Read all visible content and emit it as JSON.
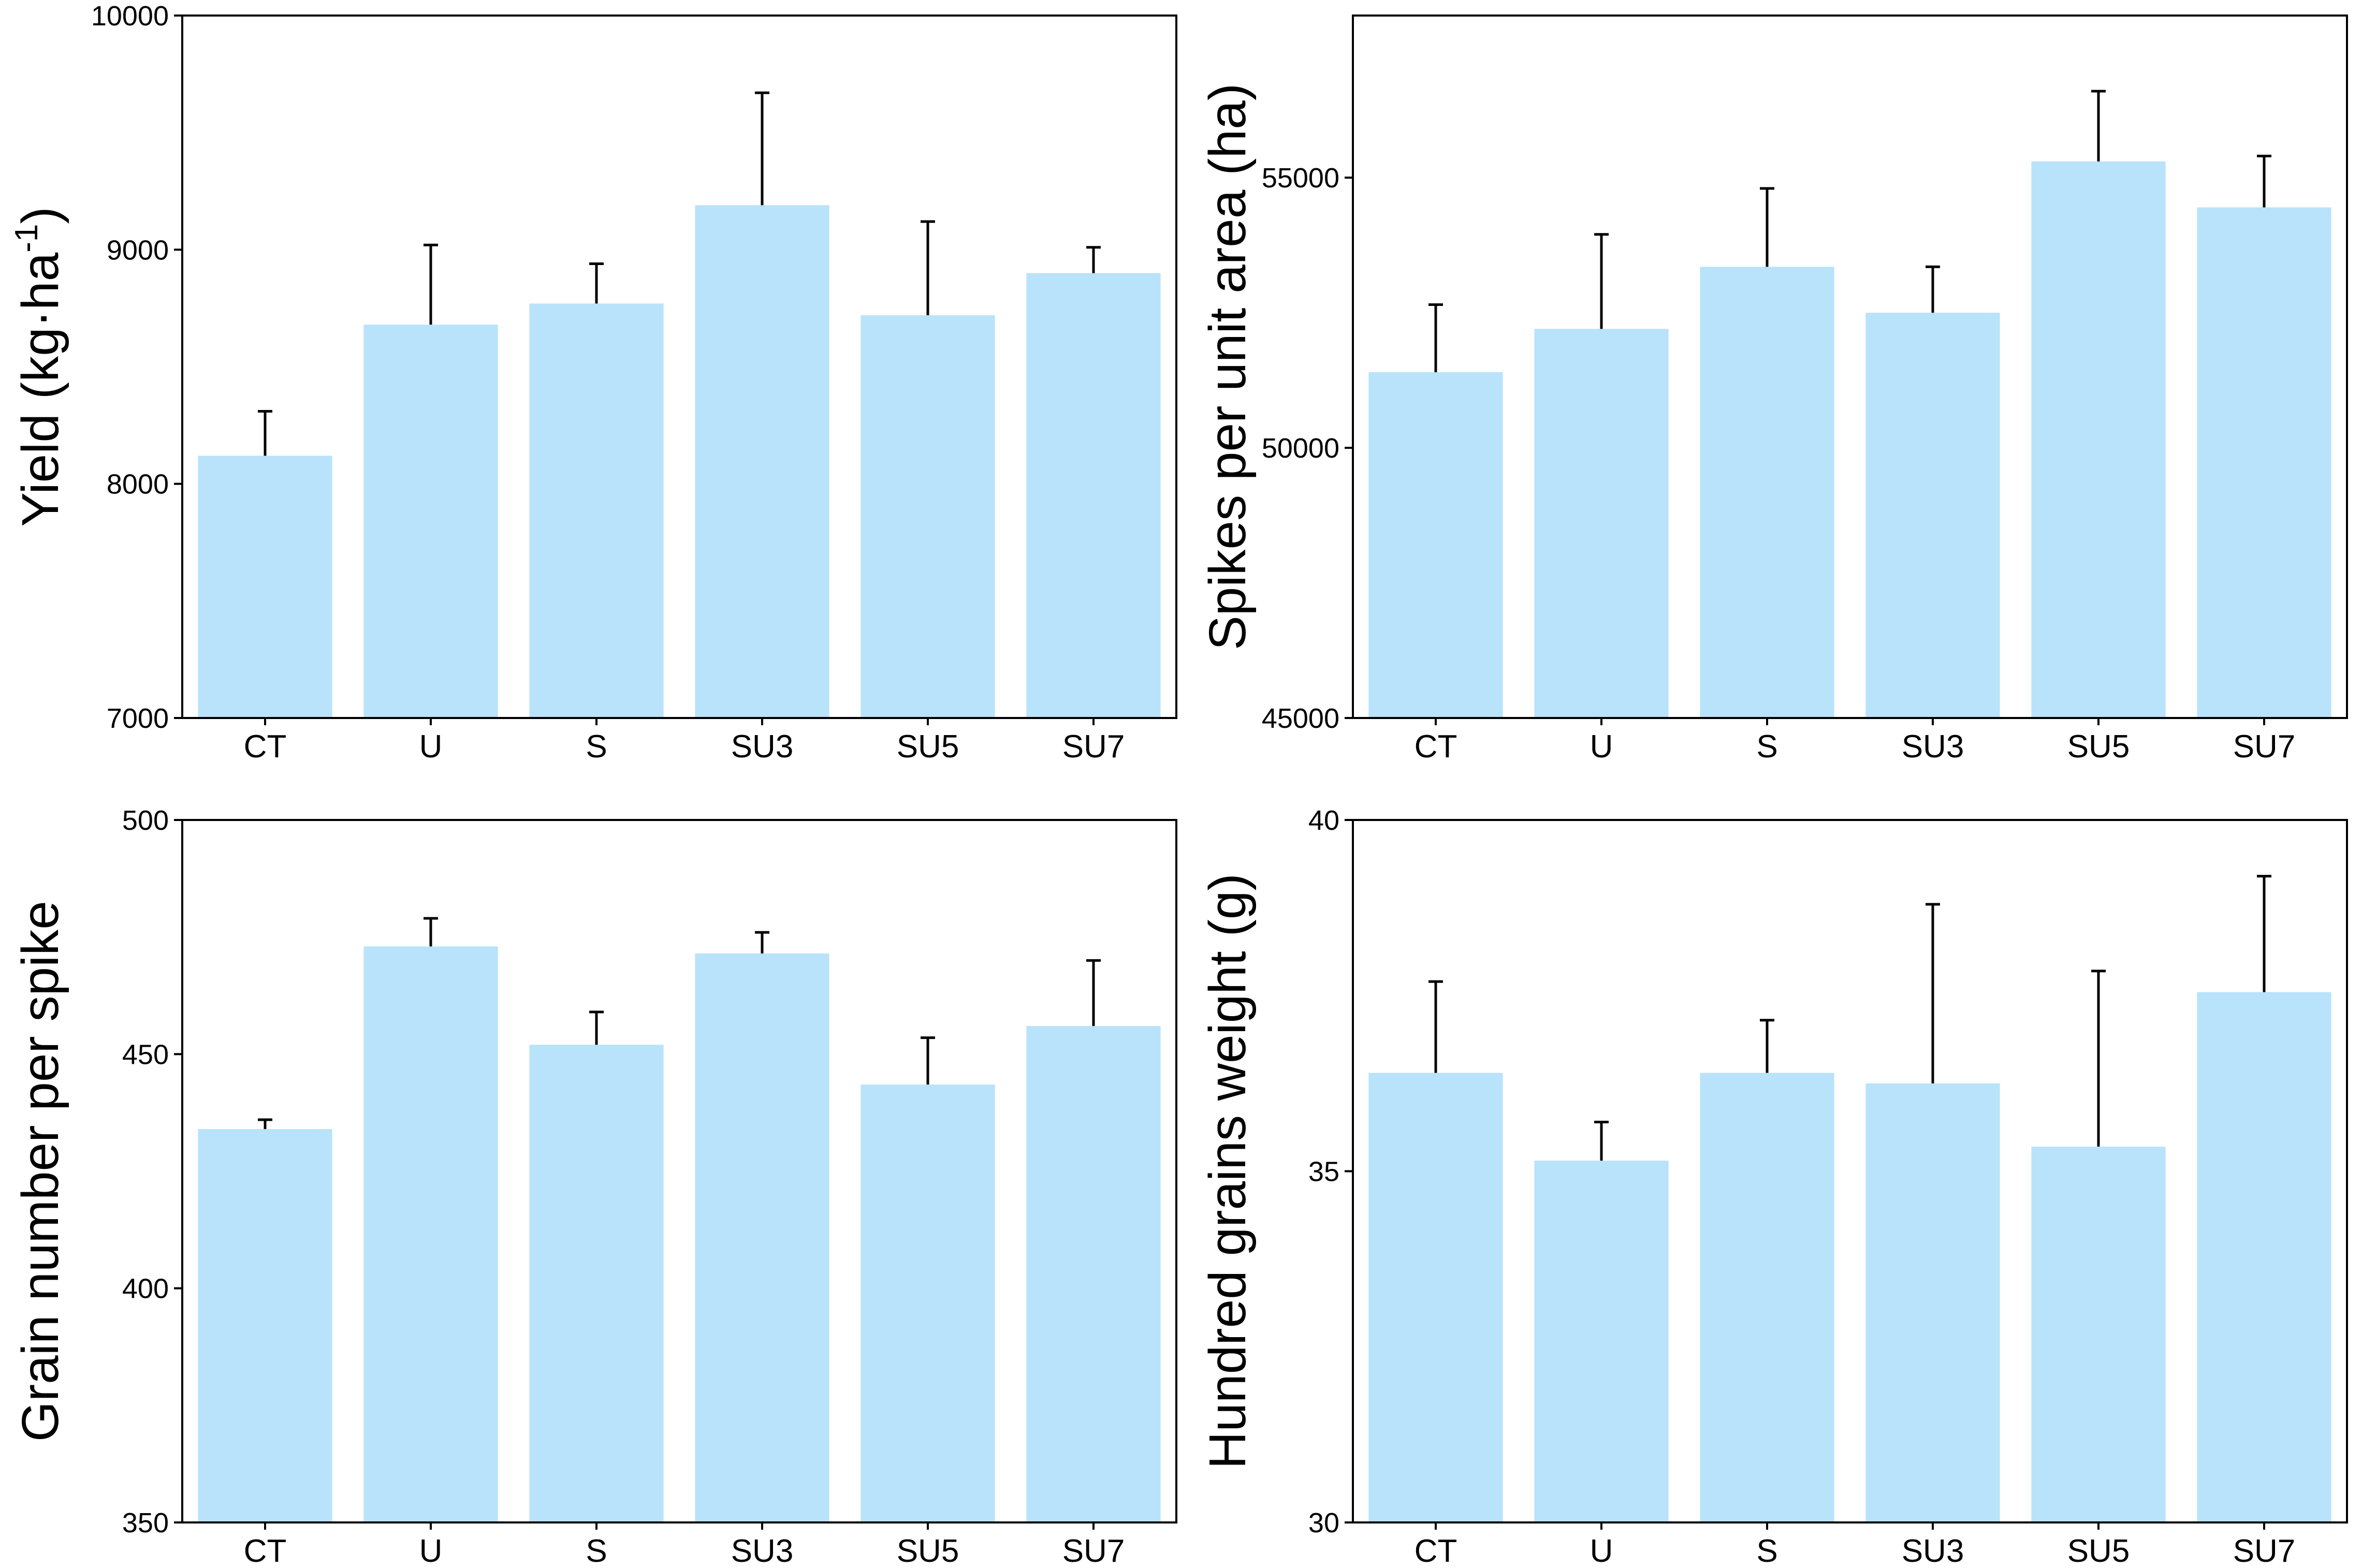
{
  "figure": {
    "bar_color": "#b8e3fa",
    "axis_color": "#000000"
  },
  "chart_data": [
    {
      "type": "bar",
      "title": "",
      "xlabel": "",
      "ylabel": "Yield (kg·ha",
      "ylabel_superscript": "-1",
      "ylabel_suffix": ")",
      "categories": [
        "CT",
        "U",
        "S",
        "SU3",
        "SU5",
        "SU7"
      ],
      "values": [
        8120,
        8680,
        8770,
        9190,
        8720,
        8900
      ],
      "errors": [
        190,
        340,
        170,
        480,
        400,
        110
      ],
      "ylim": [
        7000,
        10000
      ],
      "yticks": [
        7000,
        8000,
        9000,
        10000
      ],
      "ytick_labels": [
        "7000",
        "8000",
        "9000",
        "10000"
      ]
    },
    {
      "type": "bar",
      "title": "",
      "xlabel": "",
      "ylabel": "Spikes per unit area (ha)",
      "categories": [
        "CT",
        "U",
        "S",
        "SU3",
        "SU5",
        "SU7"
      ],
      "values": [
        51400,
        52200,
        53350,
        52500,
        55300,
        54450
      ],
      "errors": [
        1250,
        1750,
        1450,
        850,
        1300,
        950
      ],
      "ylim": [
        45000,
        58000
      ],
      "yticks": [
        45000,
        50000,
        55000
      ],
      "ytick_labels": [
        "45000",
        "50000",
        "55000"
      ]
    },
    {
      "type": "bar",
      "title": "",
      "xlabel": "",
      "ylabel": "Grain number per spike",
      "categories": [
        "CT",
        "U",
        "S",
        "SU3",
        "SU5",
        "SU7"
      ],
      "values": [
        434,
        473,
        452,
        471.5,
        443.5,
        456
      ],
      "errors": [
        2,
        6,
        7,
        4.5,
        10,
        14
      ],
      "ylim": [
        350,
        500
      ],
      "yticks": [
        350,
        400,
        450,
        500
      ],
      "ytick_labels": [
        "350",
        "400",
        "450",
        "500"
      ]
    },
    {
      "type": "bar",
      "title": "",
      "xlabel": "",
      "ylabel": "Hundred grains weight (g)",
      "categories": [
        "CT",
        "U",
        "S",
        "SU3",
        "SU5",
        "SU7"
      ],
      "values": [
        36.4,
        35.15,
        36.4,
        36.25,
        35.35,
        37.55
      ],
      "errors": [
        1.3,
        0.55,
        0.75,
        2.55,
        2.5,
        1.65
      ],
      "ylim": [
        30,
        40
      ],
      "yticks": [
        30,
        35,
        40
      ],
      "ytick_labels": [
        "30",
        "35",
        "40"
      ]
    }
  ]
}
